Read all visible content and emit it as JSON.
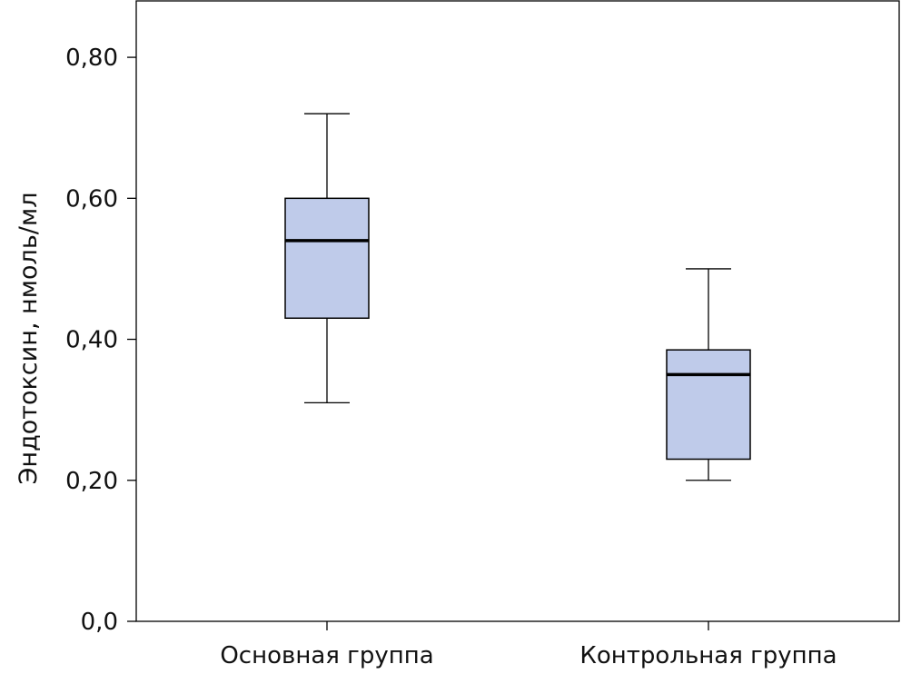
{
  "chart_data": {
    "type": "boxplot",
    "title": "",
    "xlabel": "",
    "ylabel": "Эндотоксин, нмоль/мл",
    "ylim": [
      0,
      0.88
    ],
    "yticks": [
      0.0,
      0.2,
      0.4,
      0.6,
      0.8
    ],
    "ytick_labels": [
      "0,0",
      "0,20",
      "0,40",
      "0,60",
      "0,80"
    ],
    "grid": false,
    "legend": "none",
    "box_color": "#bfcbea",
    "line_color": "#000000",
    "categories": [
      "Основная группа",
      "Контрольная группа"
    ],
    "boxes": [
      {
        "category": "Основная группа",
        "whisker_low": 0.31,
        "q1": 0.43,
        "median": 0.54,
        "q3": 0.6,
        "whisker_high": 0.72
      },
      {
        "category": "Контрольная группа",
        "whisker_low": 0.2,
        "q1": 0.23,
        "median": 0.35,
        "q3": 0.385,
        "whisker_high": 0.5
      }
    ]
  }
}
